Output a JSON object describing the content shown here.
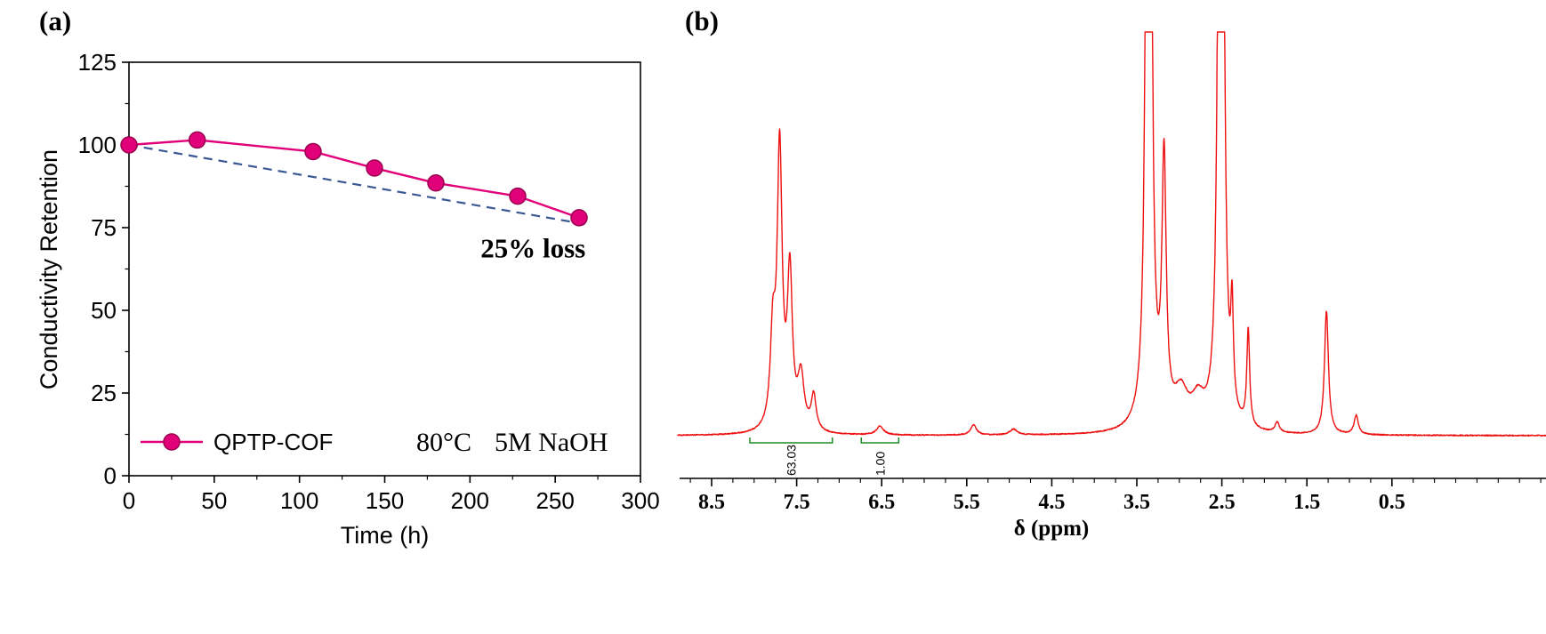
{
  "figure": {
    "background": "#ffffff"
  },
  "panel_a": {
    "label": "(a)",
    "legend": {
      "series_label": "QPTP-COF",
      "condition_1": "80°C",
      "condition_2": "5M NaOH"
    },
    "annotation_text": "25% loss",
    "colors": {
      "series": "#E2007A",
      "marker_edge": "#98004F",
      "dashed_line": "#3A5894",
      "annotation": "#35589E"
    }
  },
  "panel_b": {
    "label": "(b)",
    "xlabel": "δ (ppm)",
    "colors": {
      "trace": "#EE1111",
      "integral_bracket": "#1F8B24",
      "integral_label": "#2222CC"
    }
  },
  "chart_data": [
    {
      "type": "line",
      "panel": "a",
      "title": "",
      "xlabel": "Time (h)",
      "ylabel": "Conductivity Retention",
      "xlim": [
        0,
        300
      ],
      "ylim": [
        0,
        125
      ],
      "xticks": [
        0,
        50,
        100,
        150,
        200,
        250,
        300
      ],
      "yticks": [
        0,
        25,
        50,
        75,
        100,
        125
      ],
      "grid": false,
      "legend_position": "inside bottom-left",
      "series": [
        {
          "name": "QPTP-COF",
          "color": "#E2007A",
          "marker": "circle",
          "x": [
            0,
            40,
            108,
            144,
            180,
            228,
            264
          ],
          "y": [
            100,
            101.5,
            98,
            93,
            88.5,
            84.5,
            78
          ]
        }
      ],
      "reference_line": {
        "style": "dashed",
        "x": [
          0,
          268
        ],
        "y": [
          100,
          76
        ]
      },
      "annotations": [
        {
          "text": "25% loss",
          "x": 237,
          "y": 66
        }
      ],
      "conditions_note": "80°C 5M NaOH"
    },
    {
      "type": "line",
      "subtype": "nmr_spectrum",
      "panel": "b",
      "xlabel": "δ (ppm)",
      "x_axis_reversed": true,
      "xlim": [
        8.9,
        -1.35
      ],
      "xticks": [
        8.5,
        7.5,
        6.5,
        5.5,
        4.5,
        3.5,
        2.5,
        1.5,
        0.5
      ],
      "clip_top_intensity": 1.38,
      "peaks": [
        {
          "ppm": 7.78,
          "height": 0.3,
          "width": 0.035
        },
        {
          "ppm": 7.7,
          "height": 0.95,
          "width": 0.035
        },
        {
          "ppm": 7.58,
          "height": 0.52,
          "width": 0.035
        },
        {
          "ppm": 7.45,
          "height": 0.18,
          "width": 0.045
        },
        {
          "ppm": 7.3,
          "height": 0.12,
          "width": 0.035
        },
        {
          "ppm": 6.52,
          "height": 0.03,
          "width": 0.05
        },
        {
          "ppm": 5.42,
          "height": 0.035,
          "width": 0.04
        },
        {
          "ppm": 4.95,
          "height": 0.02,
          "width": 0.05
        },
        {
          "ppm": 3.36,
          "height": 8.0,
          "width": 0.02
        },
        {
          "ppm": 3.18,
          "height": 0.88,
          "width": 0.03
        },
        {
          "ppm": 2.98,
          "height": 0.12,
          "width": 0.1
        },
        {
          "ppm": 2.78,
          "height": 0.09,
          "width": 0.09
        },
        {
          "ppm": 2.51,
          "height": 8.0,
          "width": 0.02
        },
        {
          "ppm": 2.38,
          "height": 0.33,
          "width": 0.018
        },
        {
          "ppm": 2.19,
          "height": 0.33,
          "width": 0.02
        },
        {
          "ppm": 1.85,
          "height": 0.035,
          "width": 0.03
        },
        {
          "ppm": 1.27,
          "height": 0.42,
          "width": 0.028
        },
        {
          "ppm": 0.92,
          "height": 0.065,
          "width": 0.03
        }
      ],
      "integrals": [
        {
          "label": "63.03",
          "range_ppm": [
            8.05,
            7.08
          ]
        },
        {
          "label": "1.00",
          "range_ppm": [
            6.74,
            6.3
          ]
        }
      ]
    }
  ]
}
